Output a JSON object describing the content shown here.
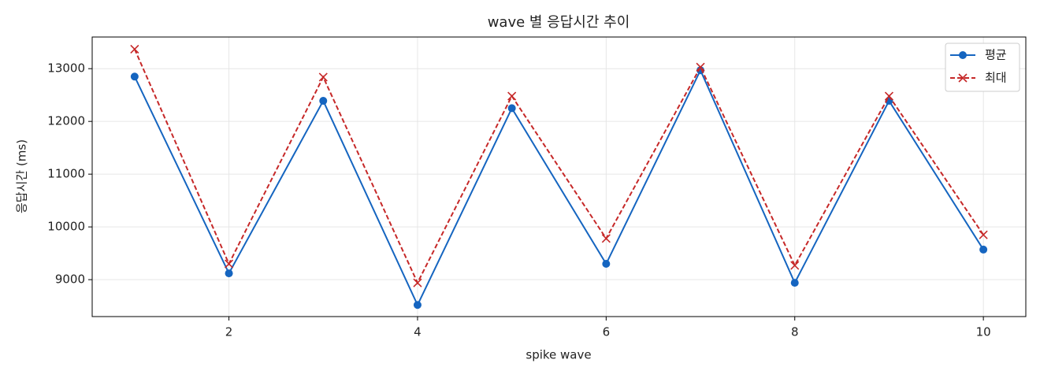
{
  "chart_data": {
    "type": "line",
    "title": "wave 별 응답시간 추이",
    "x_label": "spike wave",
    "y_label": "응답시간 (ms)",
    "x": [
      1,
      2,
      3,
      4,
      5,
      6,
      7,
      8,
      9,
      10
    ],
    "series": [
      {
        "name": "평균",
        "color": "#1565c0",
        "marker": "o",
        "dash": false,
        "values": [
          12850,
          9120,
          12390,
          8520,
          12250,
          9300,
          12970,
          8940,
          12390,
          9570
        ]
      },
      {
        "name": "최대",
        "color": "#c62828",
        "marker": "x",
        "dash": true,
        "values": [
          13370,
          9300,
          12840,
          8940,
          12480,
          9780,
          13030,
          9270,
          12480,
          9850
        ]
      }
    ],
    "xlim": [
      0.55,
      10.45
    ],
    "xticks": [
      2,
      4,
      6,
      8,
      10
    ],
    "ylim": [
      8300,
      13600
    ],
    "yticks": [
      9000,
      10000,
      11000,
      12000,
      13000
    ],
    "grid": true,
    "legend": "upper right"
  }
}
